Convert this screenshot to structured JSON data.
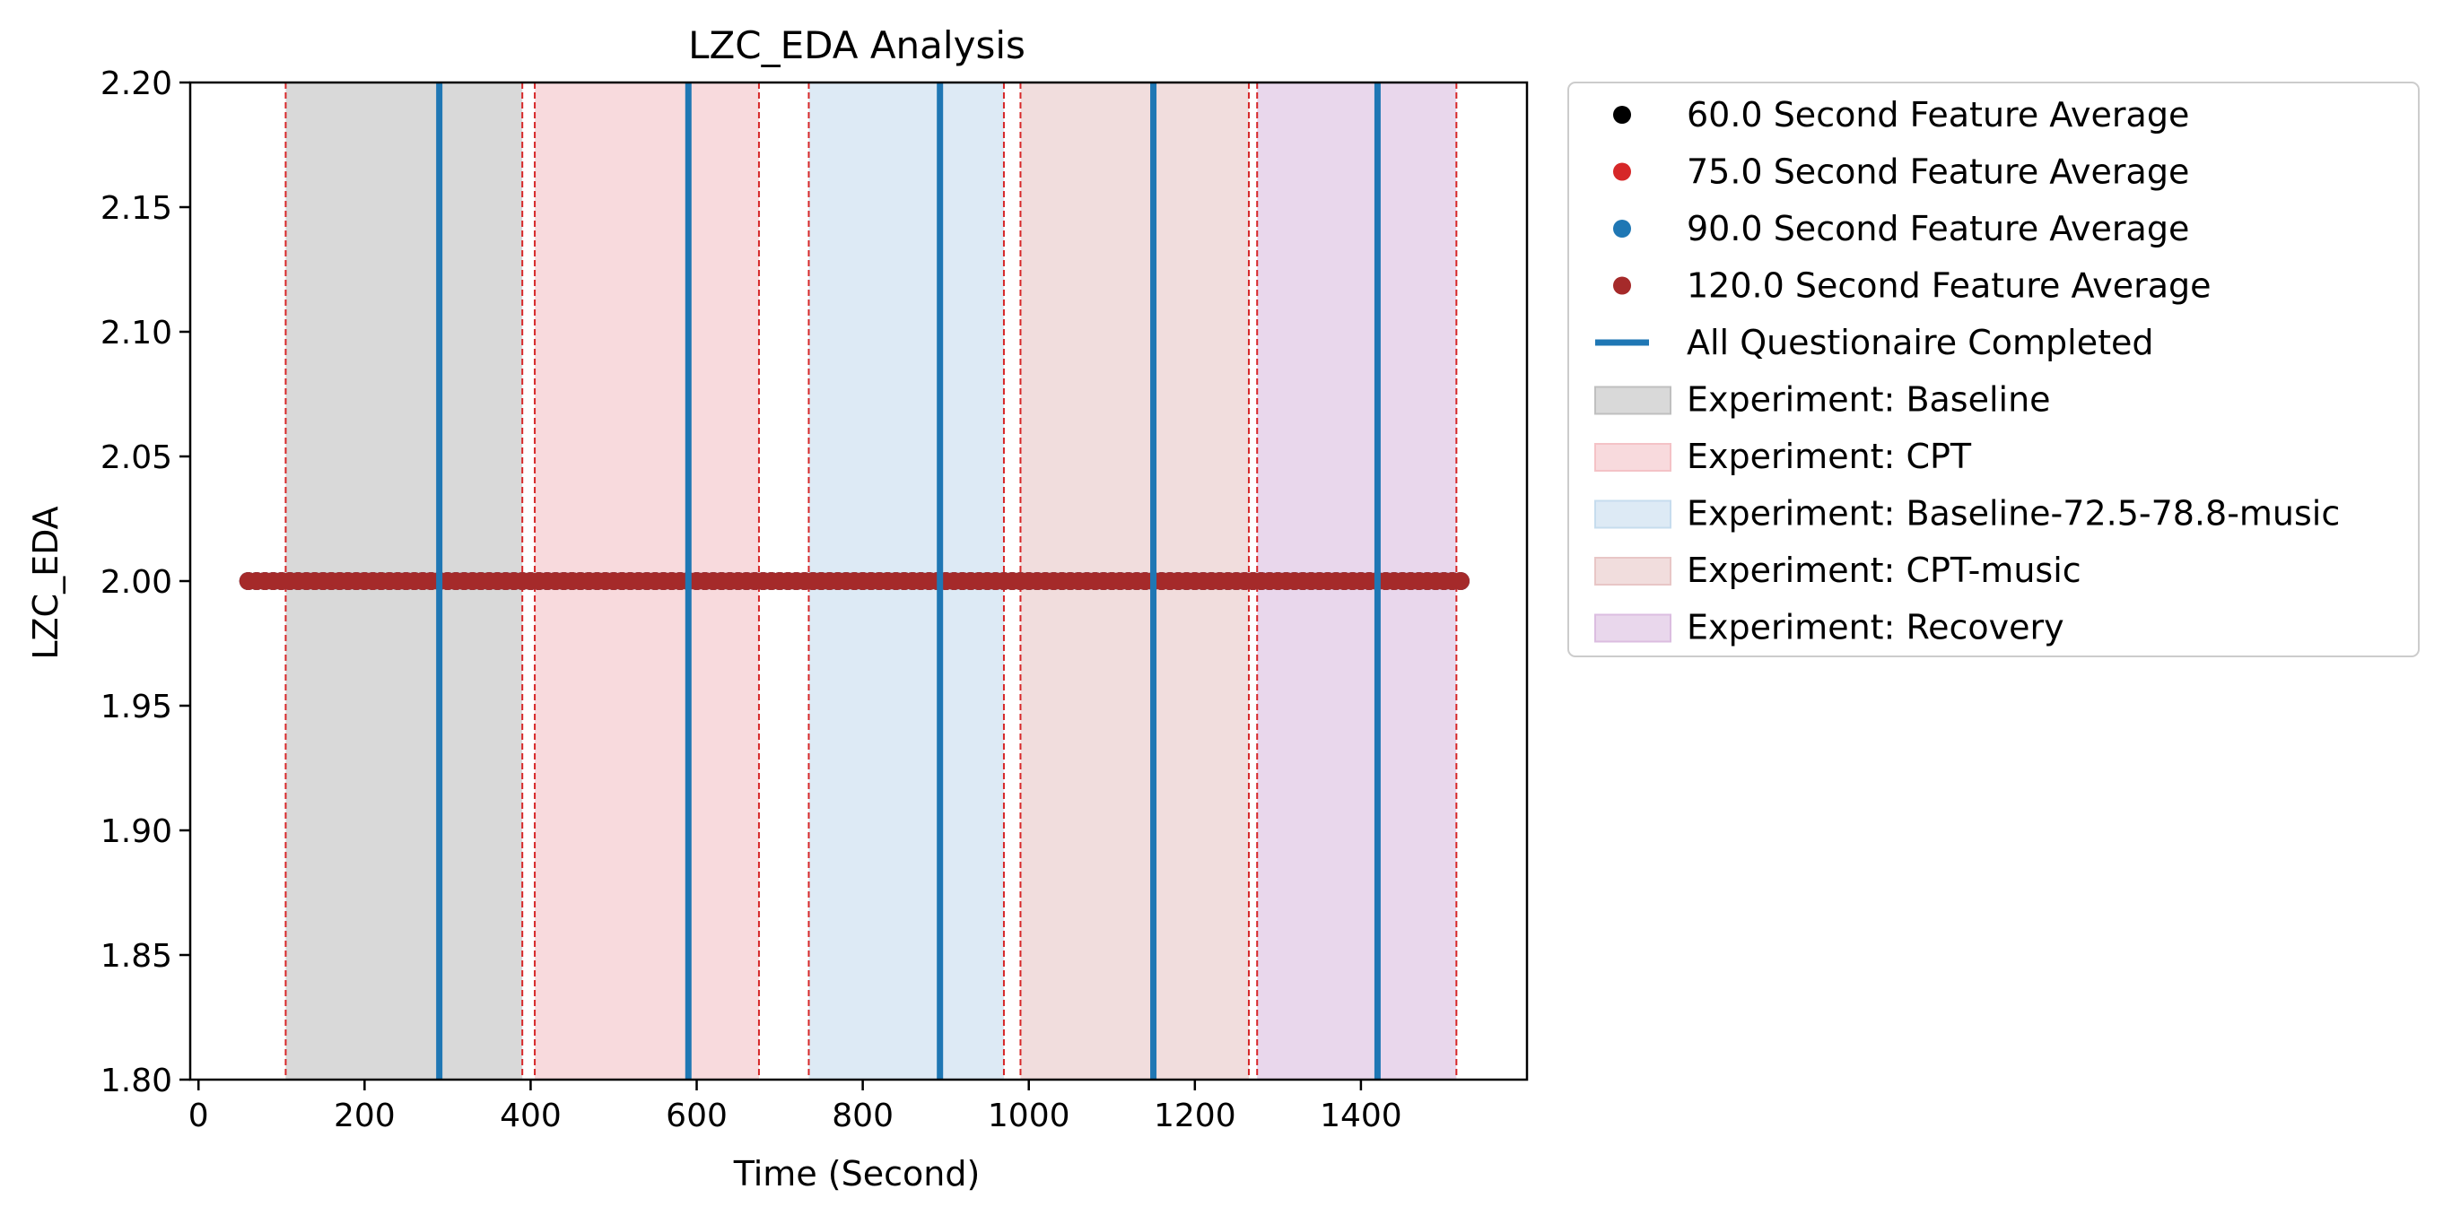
{
  "chart_data": {
    "type": "scatter",
    "title": "LZC_EDA Analysis",
    "xlabel": "Time (Second)",
    "ylabel": "LZC_EDA",
    "xlim": [
      -10,
      1600
    ],
    "ylim": [
      1.8,
      2.2
    ],
    "x_ticks": [
      0,
      200,
      400,
      600,
      800,
      1000,
      1200,
      1400
    ],
    "y_ticks": [
      1.8,
      1.85,
      1.9,
      1.95,
      2.0,
      2.05,
      2.1,
      2.15,
      2.2
    ],
    "y_tick_labels": [
      "1.80",
      "1.85",
      "1.90",
      "1.95",
      "2.00",
      "2.05",
      "2.10",
      "2.15",
      "2.20"
    ],
    "grid": false,
    "legend_position": "outside right, top",
    "series": [
      {
        "name": "60.0 Second Feature Average",
        "color": "#000000",
        "x_start": 60,
        "x_end": 1520,
        "step": 10,
        "y": 2.0
      },
      {
        "name": "75.0 Second Feature Average",
        "color": "#d62728",
        "x_start": 60,
        "x_end": 1520,
        "step": 10,
        "y": 2.0
      },
      {
        "name": "90.0 Second Feature Average",
        "color": "#1f77b4",
        "x_start": 60,
        "x_end": 1520,
        "step": 10,
        "y": 2.0
      },
      {
        "name": "120.0 Second Feature Average",
        "color": "#a52a2a",
        "x_start": 60,
        "x_end": 1520,
        "step": 10,
        "y": 2.0
      }
    ],
    "questionnaire_lines": {
      "name": "All Questionaire Completed",
      "color": "#1f77b4",
      "x": [
        290,
        590,
        893,
        1150,
        1420
      ]
    },
    "experiment_regions": [
      {
        "name": "Experiment: Baseline",
        "color": "#bfbfbf",
        "x_start": 105,
        "x_end": 390
      },
      {
        "name": "Experiment: CPT",
        "color": "#f4c2c6",
        "x_start": 405,
        "x_end": 675
      },
      {
        "name": "Experiment: Baseline-72.5-78.8-music",
        "color": "#c6dcee",
        "x_start": 735,
        "x_end": 970
      },
      {
        "name": "Experiment: CPT-music",
        "color": "#e8c6c6",
        "x_start": 990,
        "x_end": 1265
      },
      {
        "name": "Experiment: Recovery",
        "color": "#dbbde0",
        "x_start": 1275,
        "x_end": 1515
      }
    ],
    "boundary_lines": {
      "color": "#d62728",
      "x": [
        105,
        390,
        405,
        675,
        735,
        970,
        990,
        1265,
        1275,
        1515
      ]
    }
  }
}
